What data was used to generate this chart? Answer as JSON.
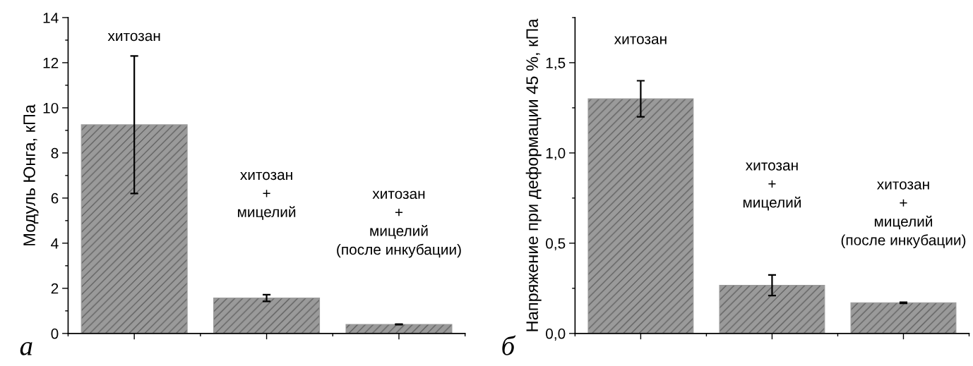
{
  "chart_data": [
    {
      "type": "bar",
      "ylabel": "Модуль Юнга, кПа",
      "categories": [
        null,
        null,
        null
      ],
      "values": [
        9.25,
        1.57,
        0.4
      ],
      "errors": [
        3.05,
        0.15,
        0.01
      ],
      "color": "#9a9a9a",
      "ylim": [
        0,
        14
      ],
      "yticks": [
        0,
        2,
        4,
        6,
        8,
        10,
        12,
        14
      ],
      "tick_labels": "y",
      "annotations": [
        "хитозан",
        "хитозан\n+\nмицелий",
        "хитозан\n+\nмицелий\n(после инкубации)",
        "а"
      ]
    },
    {
      "type": "bar",
      "ylabel": "Напряжение при деформации 45 %, кПа",
      "categories": [
        null,
        null,
        null
      ],
      "values": [
        1.3,
        0.267,
        0.17
      ],
      "errors": [
        0.1,
        0.057,
        0.003
      ],
      "color": "#9a9a9a",
      "ylim": [
        0,
        1.75
      ],
      "yticks": [
        {
          "value": 0,
          "label": "0,0"
        },
        {
          "value": 0.5,
          "label": "0,5"
        },
        {
          "value": 1.0,
          "label": "1,0"
        },
        {
          "value": 1.5,
          "label": "1,5"
        }
      ],
      "tick_labels": "y",
      "annotations": [
        "хитозан",
        "хитозан\n+\nмицелий",
        "хитозан\n+\nмицелий\n(после инкубации)",
        "б"
      ]
    }
  ]
}
